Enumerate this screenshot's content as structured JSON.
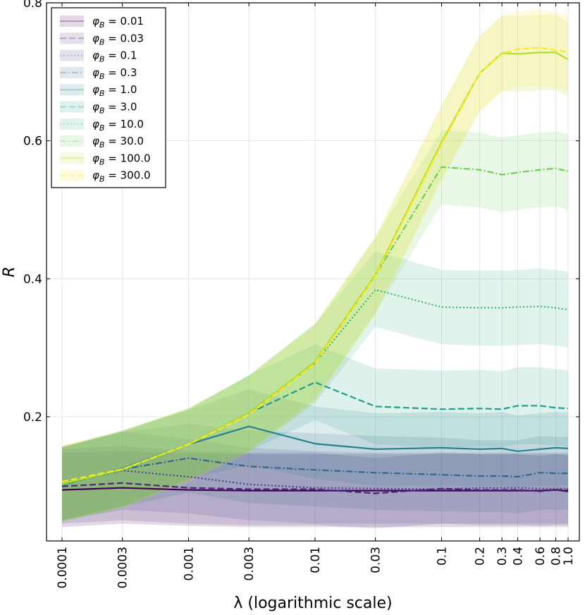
{
  "chart_data": {
    "type": "line",
    "title": "",
    "xlabel": "λ (logarithmic scale)",
    "ylabel": "R",
    "xscale": "log",
    "xlim": [
      0.0001,
      1.0
    ],
    "ylim": [
      0.02,
      0.8
    ],
    "yticks": [
      0.2,
      0.4,
      0.6,
      0.8
    ],
    "yticklabels": [
      "0.2",
      "0.4",
      "0.6",
      "0.8"
    ],
    "x": [
      0.0001,
      0.0003,
      0.001,
      0.003,
      0.01,
      0.03,
      0.1,
      0.2,
      0.3,
      0.4,
      0.6,
      0.8,
      1.0
    ],
    "xticklabels": [
      "0.0001",
      "0.0003",
      "0.001",
      "0.003",
      "0.01",
      "0.03",
      "0.1",
      "0.2",
      "0.3",
      "0.4",
      "0.6",
      "0.8",
      "1.0"
    ],
    "grid": true,
    "legend_position": "top-left",
    "legend_prefix": "φ",
    "legend_sub": "B",
    "series": [
      {
        "name": "0.01",
        "color": "#440154",
        "dash": "solid",
        "values": [
          0.094,
          0.097,
          0.094,
          0.093,
          0.093,
          0.093,
          0.093,
          0.093,
          0.093,
          0.093,
          0.093,
          0.094,
          0.092
        ],
        "lower": [
          0.04,
          0.045,
          0.042,
          0.04,
          0.04,
          0.04,
          0.04,
          0.04,
          0.04,
          0.04,
          0.04,
          0.04,
          0.04
        ],
        "upper": [
          0.148,
          0.15,
          0.147,
          0.146,
          0.146,
          0.146,
          0.146,
          0.146,
          0.146,
          0.146,
          0.146,
          0.146,
          0.144
        ]
      },
      {
        "name": "0.03",
        "color": "#482878",
        "dash": "dashed",
        "values": [
          0.099,
          0.104,
          0.097,
          0.095,
          0.095,
          0.089,
          0.096,
          0.094,
          0.094,
          0.094,
          0.092,
          0.094,
          0.094
        ],
        "lower": [
          0.045,
          0.05,
          0.045,
          0.043,
          0.043,
          0.038,
          0.045,
          0.043,
          0.043,
          0.043,
          0.042,
          0.043,
          0.043
        ],
        "upper": [
          0.153,
          0.158,
          0.15,
          0.148,
          0.148,
          0.14,
          0.148,
          0.146,
          0.146,
          0.146,
          0.143,
          0.146,
          0.146
        ]
      },
      {
        "name": "0.1",
        "color": "#3e4989",
        "dash": "dotted",
        "values": [
          0.103,
          0.122,
          0.113,
          0.102,
          0.097,
          0.096,
          0.095,
          0.097,
          0.097,
          0.097,
          0.096,
          0.096,
          0.096
        ],
        "lower": [
          0.05,
          0.065,
          0.06,
          0.05,
          0.045,
          0.045,
          0.045,
          0.045,
          0.045,
          0.045,
          0.045,
          0.045,
          0.045
        ],
        "upper": [
          0.157,
          0.178,
          0.168,
          0.155,
          0.15,
          0.148,
          0.148,
          0.148,
          0.148,
          0.148,
          0.148,
          0.148,
          0.148
        ]
      },
      {
        "name": "0.3",
        "color": "#31688e",
        "dash": "dashdot",
        "values": [
          0.103,
          0.124,
          0.14,
          0.128,
          0.123,
          0.119,
          0.116,
          0.114,
          0.114,
          0.113,
          0.119,
          0.118,
          0.118
        ],
        "lower": [
          0.05,
          0.07,
          0.09,
          0.075,
          0.07,
          0.065,
          0.063,
          0.062,
          0.062,
          0.06,
          0.065,
          0.065,
          0.065
        ],
        "upper": [
          0.156,
          0.178,
          0.19,
          0.18,
          0.176,
          0.172,
          0.17,
          0.166,
          0.166,
          0.166,
          0.172,
          0.171,
          0.171
        ]
      },
      {
        "name": "1.0",
        "color": "#26828e",
        "dash": "solid",
        "values": [
          0.101,
          0.125,
          0.16,
          0.186,
          0.161,
          0.153,
          0.155,
          0.153,
          0.154,
          0.15,
          0.153,
          0.155,
          0.154
        ],
        "lower": [
          0.05,
          0.07,
          0.11,
          0.13,
          0.11,
          0.1,
          0.1,
          0.1,
          0.1,
          0.098,
          0.1,
          0.1,
          0.1
        ],
        "upper": [
          0.155,
          0.18,
          0.21,
          0.24,
          0.215,
          0.205,
          0.207,
          0.205,
          0.207,
          0.202,
          0.205,
          0.207,
          0.206
        ]
      },
      {
        "name": "3.0",
        "color": "#1f9e89",
        "dash": "dashed",
        "values": [
          0.102,
          0.124,
          0.16,
          0.205,
          0.25,
          0.215,
          0.211,
          0.212,
          0.211,
          0.216,
          0.216,
          0.213,
          0.212
        ],
        "lower": [
          0.05,
          0.07,
          0.11,
          0.15,
          0.195,
          0.16,
          0.155,
          0.157,
          0.156,
          0.16,
          0.16,
          0.158,
          0.157
        ],
        "upper": [
          0.156,
          0.18,
          0.212,
          0.26,
          0.305,
          0.27,
          0.267,
          0.268,
          0.266,
          0.272,
          0.272,
          0.269,
          0.267
        ]
      },
      {
        "name": "10.0",
        "color": "#35b779",
        "dash": "dotted",
        "values": [
          0.102,
          0.123,
          0.16,
          0.205,
          0.278,
          0.384,
          0.359,
          0.358,
          0.358,
          0.359,
          0.36,
          0.358,
          0.355
        ],
        "lower": [
          0.048,
          0.068,
          0.108,
          0.15,
          0.22,
          0.33,
          0.305,
          0.303,
          0.303,
          0.304,
          0.305,
          0.303,
          0.3
        ],
        "upper": [
          0.156,
          0.178,
          0.212,
          0.26,
          0.335,
          0.44,
          0.413,
          0.412,
          0.412,
          0.413,
          0.415,
          0.413,
          0.41
        ]
      },
      {
        "name": "30.0",
        "color": "#6ece58",
        "dash": "dashdot",
        "values": [
          0.102,
          0.123,
          0.159,
          0.206,
          0.279,
          0.405,
          0.562,
          0.558,
          0.551,
          0.554,
          0.558,
          0.56,
          0.556
        ],
        "lower": [
          0.048,
          0.068,
          0.108,
          0.152,
          0.225,
          0.35,
          0.508,
          0.503,
          0.497,
          0.5,
          0.503,
          0.505,
          0.5
        ],
        "upper": [
          0.156,
          0.178,
          0.21,
          0.26,
          0.333,
          0.46,
          0.615,
          0.612,
          0.605,
          0.608,
          0.612,
          0.614,
          0.61
        ]
      },
      {
        "name": "100.0",
        "color": "#b5de2b",
        "dash": "solid",
        "values": [
          0.103,
          0.124,
          0.16,
          0.205,
          0.28,
          0.406,
          0.598,
          0.698,
          0.727,
          0.726,
          0.728,
          0.728,
          0.718
        ],
        "lower": [
          0.048,
          0.068,
          0.108,
          0.15,
          0.225,
          0.35,
          0.545,
          0.643,
          0.672,
          0.671,
          0.673,
          0.673,
          0.664
        ],
        "upper": [
          0.158,
          0.18,
          0.212,
          0.26,
          0.335,
          0.462,
          0.652,
          0.752,
          0.782,
          0.781,
          0.783,
          0.783,
          0.772
        ]
      },
      {
        "name": "300.0",
        "color": "#fde725",
        "dash": "dashed",
        "values": [
          0.106,
          0.124,
          0.16,
          0.203,
          0.277,
          0.404,
          0.595,
          0.698,
          0.726,
          0.733,
          0.735,
          0.731,
          0.729
        ],
        "lower": [
          0.05,
          0.068,
          0.105,
          0.148,
          0.22,
          0.348,
          0.54,
          0.643,
          0.671,
          0.678,
          0.68,
          0.676,
          0.674
        ],
        "upper": [
          0.16,
          0.18,
          0.213,
          0.258,
          0.333,
          0.46,
          0.65,
          0.752,
          0.781,
          0.788,
          0.79,
          0.786,
          0.784
        ]
      }
    ]
  }
}
